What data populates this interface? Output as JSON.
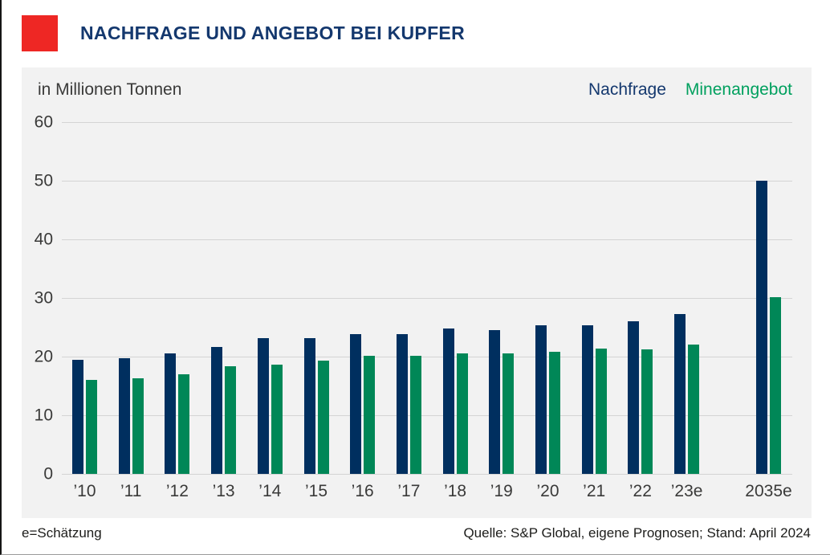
{
  "header": {
    "title": "NACHFRAGE UND ANGEBOT BEI KUPFER"
  },
  "panel": {
    "unit_label": "in Millionen Tonnen"
  },
  "legend": {
    "demand_label": "Nachfrage",
    "supply_label": "Minenangebot"
  },
  "footer": {
    "note": "e=Schätzung",
    "source": "Quelle: S&P Global, eigene Prognosen; Stand: April 2024"
  },
  "icons": {
    "logo": "red-square-logo"
  },
  "colors": {
    "accent_red": "#ee2724",
    "title_navy": "#14386e",
    "demand": "#002f5f",
    "supply": "#008757",
    "legend_supply_text": "#00a05e",
    "panel_bg": "#f2f2f2",
    "gridline": "#d4d4d4"
  },
  "chart_data": {
    "type": "bar",
    "title": "NACHFRAGE UND ANGEBOT BEI KUPFER",
    "subtitle": "in Millionen Tonnen",
    "categories": [
      "’10",
      "’11",
      "’12",
      "’13",
      "’14",
      "’15",
      "’16",
      "’17",
      "’18",
      "’19",
      "’20",
      "’21",
      "’22",
      "’23e",
      "2035e"
    ],
    "series": [
      {
        "name": "Nachfrage",
        "color": "#002f5f",
        "values": [
          19.5,
          19.8,
          20.5,
          21.6,
          23.1,
          23.2,
          23.8,
          23.9,
          24.8,
          24.5,
          25.4,
          25.3,
          26.0,
          27.2,
          50.0
        ]
      },
      {
        "name": "Minenangebot",
        "color": "#008757",
        "values": [
          16.0,
          16.3,
          17.0,
          18.3,
          18.7,
          19.3,
          20.2,
          20.1,
          20.5,
          20.5,
          20.8,
          21.4,
          21.3,
          22.0,
          30.2
        ]
      }
    ],
    "xlabel": "",
    "ylabel": "in Millionen Tonnen",
    "ylim": [
      0,
      60
    ],
    "yticks": [
      0,
      10,
      20,
      30,
      40,
      50,
      60
    ],
    "grid": true,
    "legend_position": "top-right",
    "notes": "e=Schätzung; Quelle: S&P Global, eigene Prognosen; Stand: April 2024; extra horizontal gap before 2035e group"
  }
}
